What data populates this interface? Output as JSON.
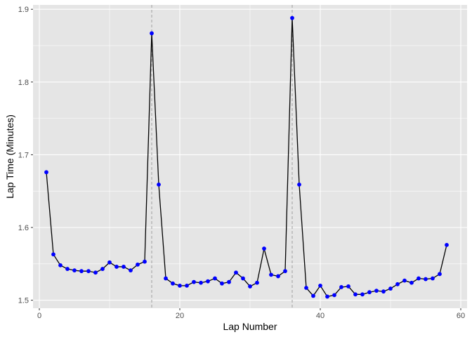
{
  "chart_data": {
    "type": "line",
    "xlabel": "Lap Number",
    "ylabel": "Lap Time (Minutes)",
    "xlim": [
      -0.9,
      60.9
    ],
    "ylim": [
      1.489,
      1.906
    ],
    "x_ticks": [
      0,
      20,
      40,
      60
    ],
    "x_tick_labels": [
      "0",
      "20",
      "40",
      "60"
    ],
    "y_ticks": [
      1.5,
      1.6,
      1.7,
      1.8,
      1.9
    ],
    "y_tick_labels": [
      "1.5",
      "1.6",
      "1.7",
      "1.8",
      "1.9"
    ],
    "grid": true,
    "vlines": [
      16,
      36
    ],
    "colors": {
      "panel": "#e5e5e5",
      "grid": "#ffffff",
      "line": "#000000",
      "point": "#0000ff",
      "vline": "#aaaaaa"
    },
    "series": [
      {
        "x": [
          1,
          2,
          3,
          4,
          5,
          6,
          7,
          8,
          9,
          10,
          11,
          12,
          13,
          14,
          15,
          16,
          17,
          18,
          19,
          20,
          21,
          22,
          23,
          24,
          25,
          26,
          27,
          28,
          29,
          30,
          31,
          32,
          33,
          34,
          35,
          36,
          37,
          38,
          39,
          40,
          41,
          42,
          43,
          44,
          45,
          46,
          47,
          48,
          49,
          50,
          51,
          52,
          53,
          54,
          55,
          56,
          57,
          58
        ],
        "y": [
          1.676,
          1.563,
          1.548,
          1.543,
          1.541,
          1.54,
          1.54,
          1.538,
          1.543,
          1.552,
          1.546,
          1.546,
          1.541,
          1.549,
          1.553,
          1.867,
          1.659,
          1.53,
          1.523,
          1.52,
          1.52,
          1.525,
          1.524,
          1.526,
          1.53,
          1.523,
          1.525,
          1.538,
          1.53,
          1.519,
          1.524,
          1.571,
          1.535,
          1.533,
          1.54,
          1.888,
          1.659,
          1.517,
          1.506,
          1.52,
          1.505,
          1.507,
          1.518,
          1.519,
          1.508,
          1.508,
          1.511,
          1.513,
          1.512,
          1.516,
          1.522,
          1.527,
          1.524,
          1.53,
          1.529,
          1.53,
          1.536,
          1.576
        ]
      }
    ]
  }
}
